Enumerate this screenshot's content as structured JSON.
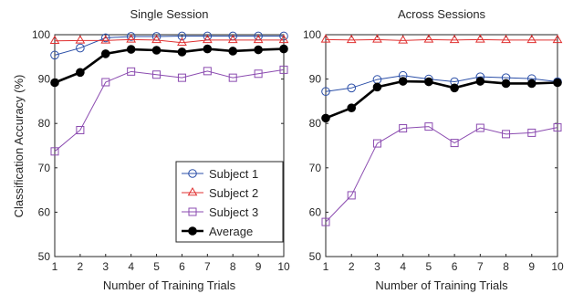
{
  "chart_data": [
    {
      "type": "line",
      "title": "Single Session",
      "xlabel": "Number of Training Trials",
      "ylabel": "Classification Accuracy (%)",
      "x": [
        1,
        2,
        3,
        4,
        5,
        6,
        7,
        8,
        9,
        10
      ],
      "xlim": [
        1,
        10
      ],
      "ylim": [
        50,
        100
      ],
      "yticks": [
        50,
        60,
        70,
        80,
        90,
        100
      ],
      "grid": false,
      "legend": "lower-right",
      "series": [
        {
          "name": "Subject 1",
          "color": "#2b4fa8",
          "marker": "circle",
          "values": [
            95.4,
            97.0,
            99.3,
            99.6,
            99.6,
            99.7,
            99.7,
            99.7,
            99.7,
            99.7
          ]
        },
        {
          "name": "Subject 2",
          "color": "#e03030",
          "marker": "triangle",
          "values": [
            98.6,
            98.7,
            98.7,
            98.9,
            98.8,
            98.2,
            98.8,
            98.8,
            98.8,
            98.8
          ]
        },
        {
          "name": "Subject 3",
          "color": "#8b4bb0",
          "marker": "square",
          "values": [
            73.7,
            78.5,
            89.3,
            91.7,
            91.0,
            90.3,
            91.8,
            90.3,
            91.2,
            92.1
          ]
        },
        {
          "name": "Average",
          "color": "#000000",
          "marker": "filled-circle",
          "values": [
            89.2,
            91.5,
            95.7,
            96.7,
            96.5,
            96.1,
            96.8,
            96.3,
            96.6,
            96.8
          ]
        }
      ]
    },
    {
      "type": "line",
      "title": "Across Sessions",
      "xlabel": "Number of Training Trials",
      "ylabel": "",
      "x": [
        1,
        2,
        3,
        4,
        5,
        6,
        7,
        8,
        9,
        10
      ],
      "xlim": [
        1,
        10
      ],
      "ylim": [
        50,
        100
      ],
      "yticks": [
        50,
        60,
        70,
        80,
        90,
        100
      ],
      "grid": false,
      "series": [
        {
          "name": "Subject 1",
          "color": "#2b4fa8",
          "marker": "circle",
          "values": [
            87.2,
            88.0,
            89.9,
            90.8,
            90.0,
            89.4,
            90.5,
            90.3,
            90.1,
            89.4
          ]
        },
        {
          "name": "Subject 2",
          "color": "#e03030",
          "marker": "triangle",
          "values": [
            98.9,
            98.8,
            98.9,
            98.7,
            98.9,
            98.8,
            98.9,
            98.8,
            98.8,
            98.8
          ]
        },
        {
          "name": "Subject 3",
          "color": "#8b4bb0",
          "marker": "square",
          "values": [
            57.8,
            63.8,
            75.5,
            78.9,
            79.3,
            75.6,
            79.0,
            77.6,
            77.9,
            79.1
          ]
        },
        {
          "name": "Average",
          "color": "#000000",
          "marker": "filled-circle",
          "values": [
            81.2,
            83.5,
            88.2,
            89.5,
            89.4,
            88.0,
            89.5,
            89.0,
            89.0,
            89.2
          ]
        }
      ]
    }
  ]
}
